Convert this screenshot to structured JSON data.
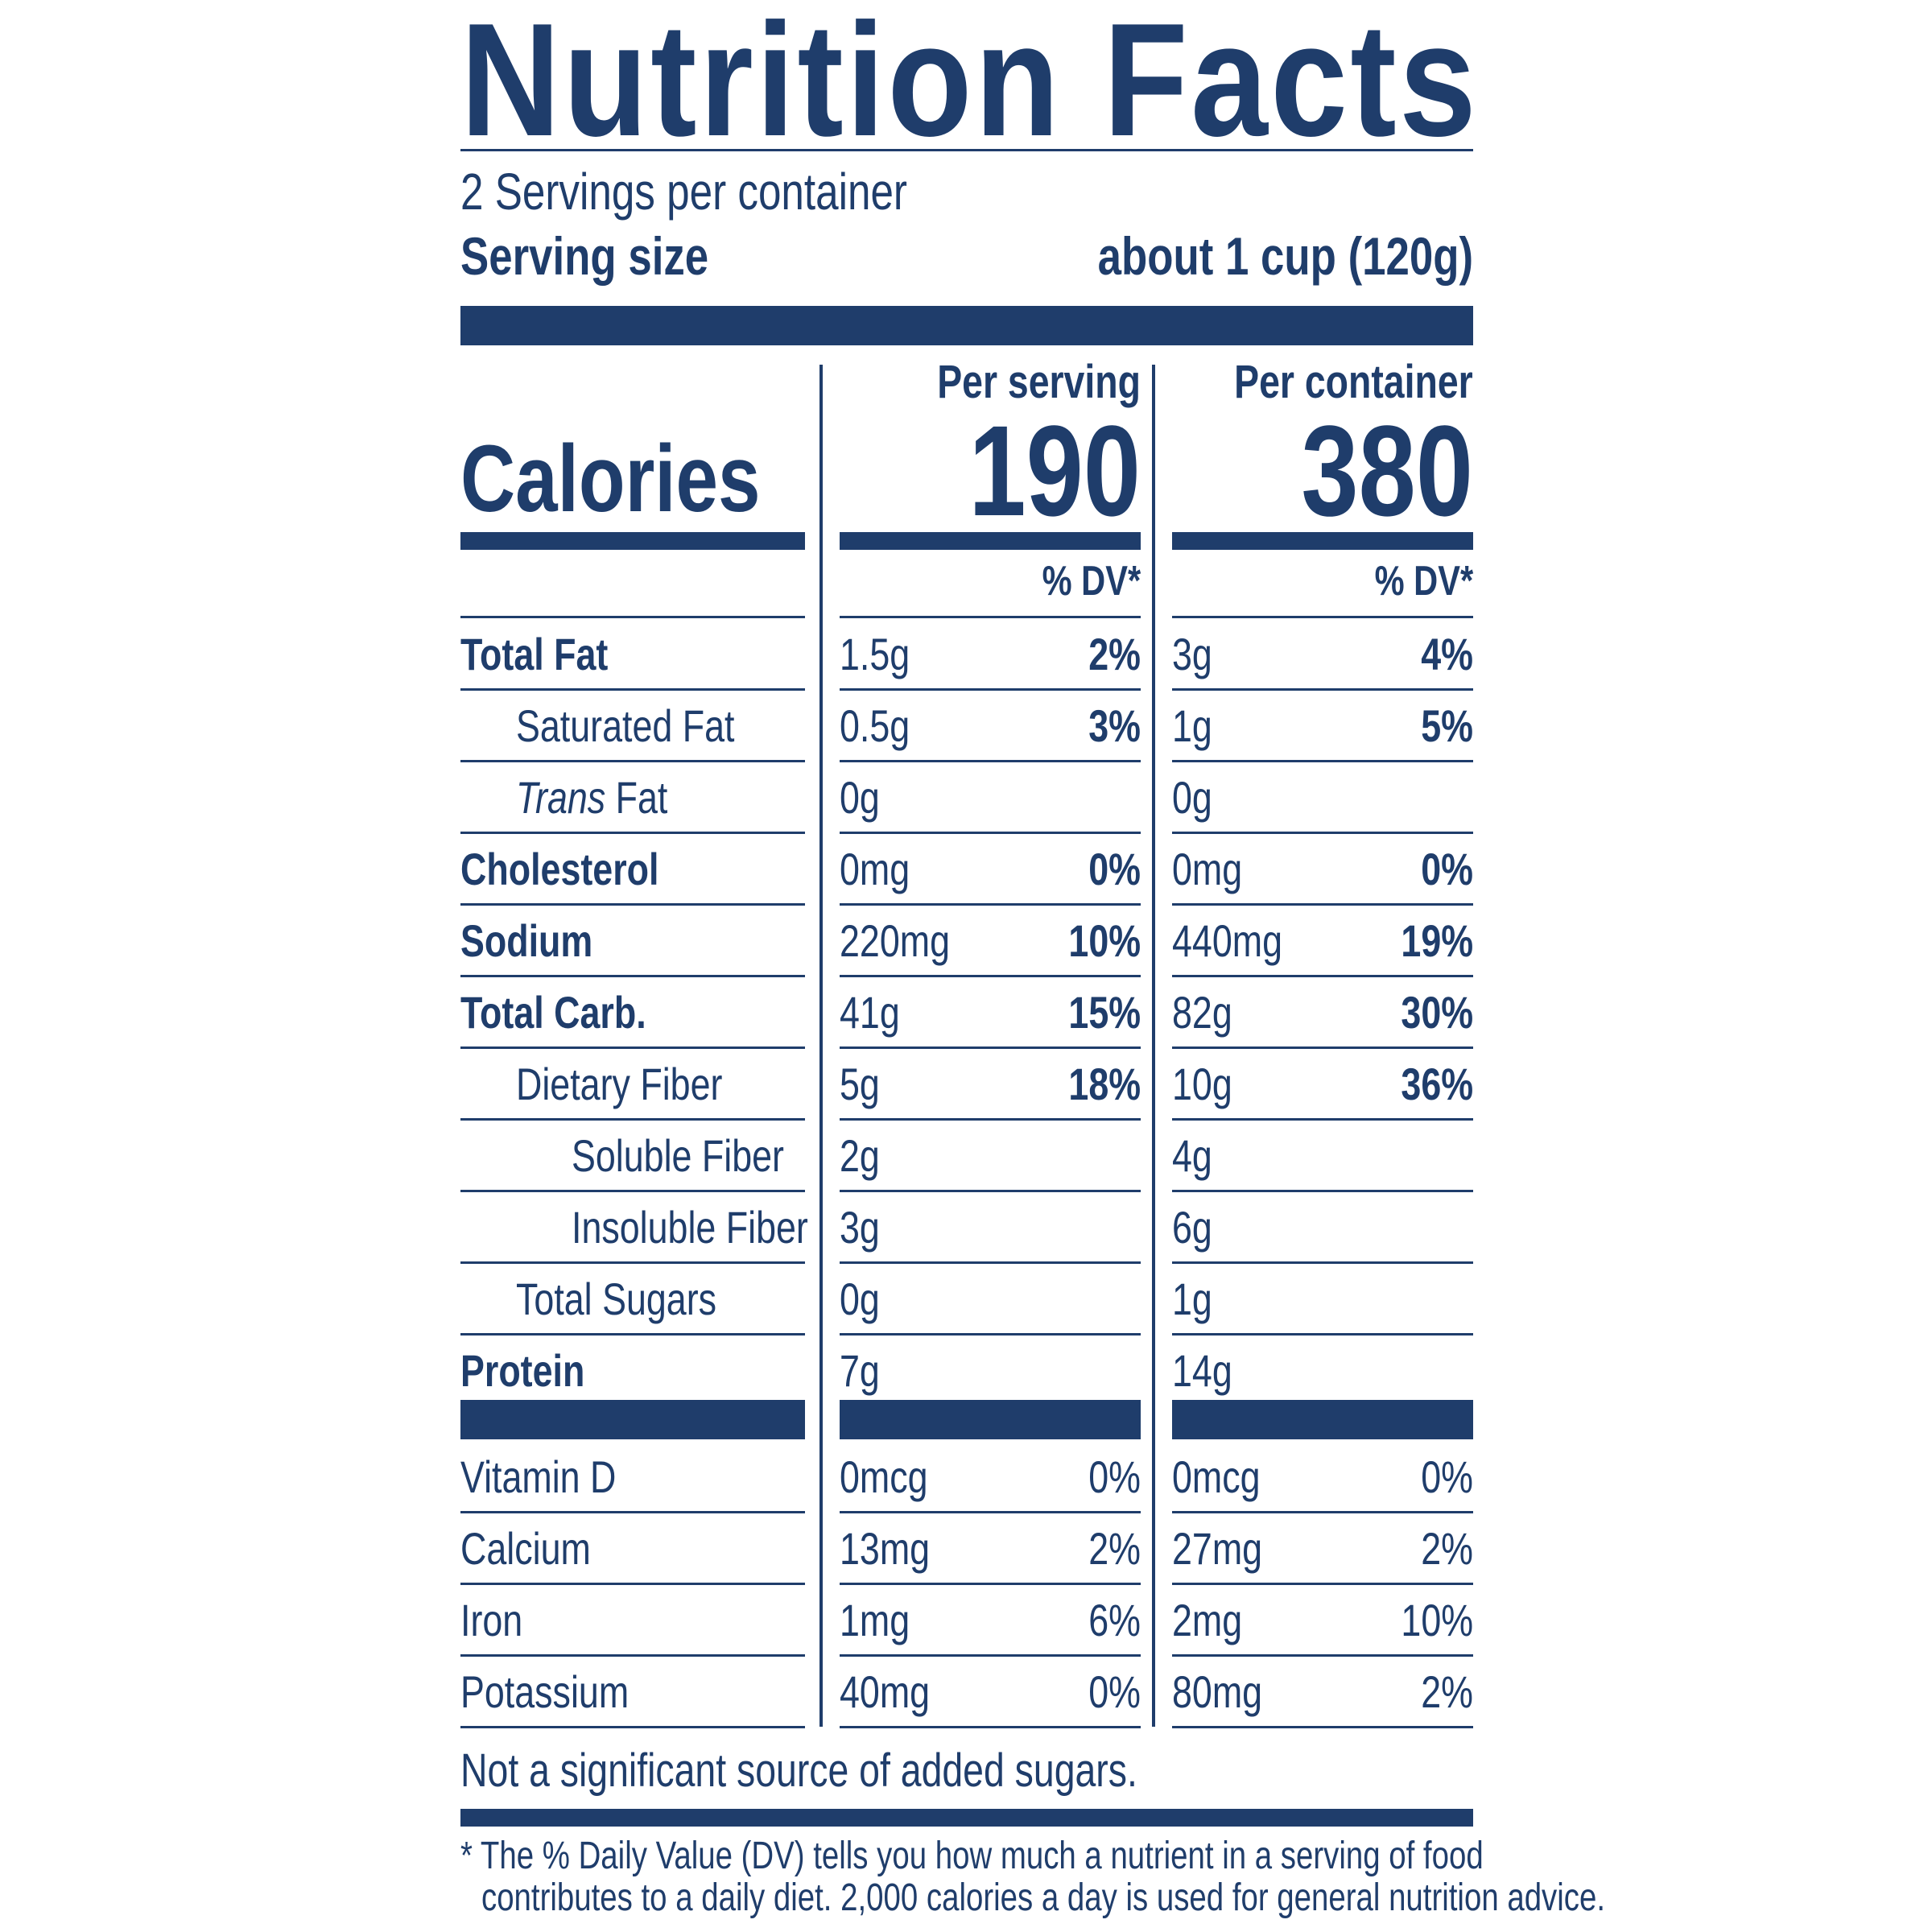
{
  "title": "Nutrition Facts",
  "servings_per_container": "2 Servings per container",
  "serving_size_label": "Serving size",
  "serving_size_value": "about 1 cup (120g)",
  "calories_label": "Calories",
  "columns": [
    {
      "header": "Per serving",
      "calories": "190",
      "dv_label": "% DV*"
    },
    {
      "header": "Per container",
      "calories": "380",
      "dv_label": "% DV*"
    }
  ],
  "nutrients": [
    {
      "name": "Total Fat",
      "indent": 0,
      "bold": true,
      "serving": [
        "1.5g",
        "2%"
      ],
      "container": [
        "3g",
        "4%"
      ]
    },
    {
      "name": "Saturated Fat",
      "indent": 1,
      "bold": false,
      "serving": [
        "0.5g",
        "3%"
      ],
      "container": [
        "1g",
        "5%"
      ]
    },
    {
      "name": "Trans",
      "name_suffix": " Fat",
      "indent": 1,
      "italic": true,
      "serving": [
        "0g",
        ""
      ],
      "container": [
        "0g",
        ""
      ]
    },
    {
      "name": "Cholesterol",
      "indent": 0,
      "bold": true,
      "serving": [
        "0mg",
        "0%"
      ],
      "container": [
        "0mg",
        "0%"
      ]
    },
    {
      "name": "Sodium",
      "indent": 0,
      "bold": true,
      "serving": [
        "220mg",
        "10%"
      ],
      "container": [
        "440mg",
        "19%"
      ]
    },
    {
      "name": "Total Carb.",
      "indent": 0,
      "bold": true,
      "serving": [
        "41g",
        "15%"
      ],
      "container": [
        "82g",
        "30%"
      ]
    },
    {
      "name": "Dietary Fiber",
      "indent": 1,
      "bold": false,
      "serving": [
        "5g",
        "18%"
      ],
      "container": [
        "10g",
        "36%"
      ]
    },
    {
      "name": "Soluble Fiber",
      "indent": 2,
      "bold": false,
      "serving": [
        "2g",
        ""
      ],
      "container": [
        "4g",
        ""
      ]
    },
    {
      "name": "Insoluble Fiber",
      "indent": 2,
      "bold": false,
      "serving": [
        "3g",
        ""
      ],
      "container": [
        "6g",
        ""
      ]
    },
    {
      "name": "Total Sugars",
      "indent": 1,
      "bold": false,
      "serving": [
        "0g",
        ""
      ],
      "container": [
        "1g",
        ""
      ]
    },
    {
      "name": "Protein",
      "indent": 0,
      "bold": true,
      "serving": [
        "7g",
        ""
      ],
      "container": [
        "14g",
        ""
      ]
    }
  ],
  "vitamins": [
    {
      "name": "Vitamin D",
      "serving": [
        "0mcg",
        "0%"
      ],
      "container": [
        "0mcg",
        "0%"
      ]
    },
    {
      "name": "Calcium",
      "serving": [
        "13mg",
        "2%"
      ],
      "container": [
        "27mg",
        "2%"
      ]
    },
    {
      "name": "Iron",
      "serving": [
        "1mg",
        "6%"
      ],
      "container": [
        "2mg",
        "10%"
      ]
    },
    {
      "name": "Potassium",
      "serving": [
        "40mg",
        "0%"
      ],
      "container": [
        "80mg",
        "2%"
      ]
    }
  ],
  "added_sugars_note": "Not a significant source of added sugars.",
  "footnote_line1": "* The % Daily Value (DV) tells you how much a nutrient in a serving of food",
  "footnote_line2": "contributes to a daily diet. 2,000 calories a day is used for general nutrition advice.",
  "colors": {
    "ink": "#1f3d6b",
    "background": "#ffffff"
  }
}
